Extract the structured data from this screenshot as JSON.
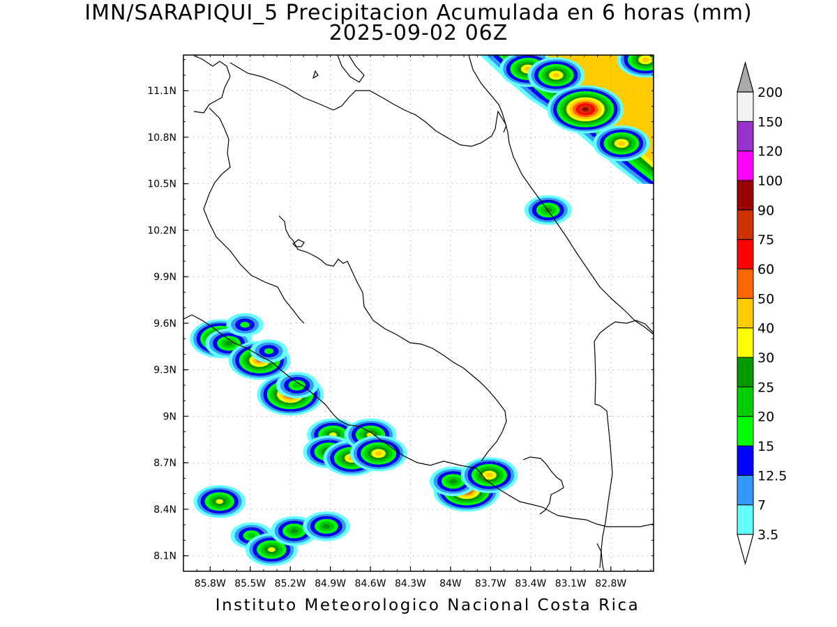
{
  "title": {
    "line1": "IMN/SARAPIQUI_5 Precipitacion Acumulada en 6 horas (mm)",
    "line2": "2025-09-02 06Z"
  },
  "footer": "Instituto Meteorologico Nacional Costa Rica",
  "axes": {
    "lon_range": [
      -86.0,
      -82.48
    ],
    "lat_range": [
      8.0,
      11.33
    ],
    "x_ticks": [
      {
        "value": -85.8,
        "label": "85.8W"
      },
      {
        "value": -85.5,
        "label": "85.5W"
      },
      {
        "value": -85.2,
        "label": "85.2W"
      },
      {
        "value": -84.9,
        "label": "84.9W"
      },
      {
        "value": -84.6,
        "label": "84.6W"
      },
      {
        "value": -84.3,
        "label": "84.3W"
      },
      {
        "value": -84.0,
        "label": "84W"
      },
      {
        "value": -83.7,
        "label": "83.7W"
      },
      {
        "value": -83.4,
        "label": "83.4W"
      },
      {
        "value": -83.1,
        "label": "83.1W"
      },
      {
        "value": -82.8,
        "label": "82.8W"
      }
    ],
    "y_ticks": [
      {
        "value": 8.1,
        "label": "8.1N"
      },
      {
        "value": 8.4,
        "label": "8.4N"
      },
      {
        "value": 8.7,
        "label": "8.7N"
      },
      {
        "value": 9.0,
        "label": "9N"
      },
      {
        "value": 9.3,
        "label": "9.3N"
      },
      {
        "value": 9.6,
        "label": "9.6N"
      },
      {
        "value": 9.9,
        "label": "9.9N"
      },
      {
        "value": 10.2,
        "label": "10.2N"
      },
      {
        "value": 10.5,
        "label": "10.5N"
      },
      {
        "value": 10.8,
        "label": "10.8N"
      },
      {
        "value": 11.1,
        "label": "11.1N"
      }
    ],
    "grid": true
  },
  "colorbar": {
    "units": "mm",
    "levels": [
      {
        "label": "3.5",
        "color": "#66ffff"
      },
      {
        "label": "7",
        "color": "#3399ff"
      },
      {
        "label": "12.5",
        "color": "#0000ff"
      },
      {
        "label": "15",
        "color": "#00ff00"
      },
      {
        "label": "20",
        "color": "#00cc00"
      },
      {
        "label": "25",
        "color": "#009900"
      },
      {
        "label": "30",
        "color": "#ffff00"
      },
      {
        "label": "40",
        "color": "#ffcc00"
      },
      {
        "label": "50",
        "color": "#ff6600"
      },
      {
        "label": "60",
        "color": "#ff0000"
      },
      {
        "label": "75",
        "color": "#cc3300"
      },
      {
        "label": "90",
        "color": "#990000"
      },
      {
        "label": "100",
        "color": "#ff00ff"
      },
      {
        "label": "120",
        "color": "#9933cc"
      },
      {
        "label": "150",
        "color": "#f2f2f2"
      },
      {
        "label": "200",
        "color": "#aaaaaa"
      }
    ]
  },
  "precip_cells": [
    {
      "lon": -85.72,
      "lat": 9.5,
      "max_mm": 50
    },
    {
      "lon": -85.66,
      "lat": 9.47,
      "max_mm": 25
    },
    {
      "lon": -85.43,
      "lat": 9.36,
      "max_mm": 50
    },
    {
      "lon": -85.54,
      "lat": 9.59,
      "max_mm": 15
    },
    {
      "lon": -85.36,
      "lat": 9.42,
      "max_mm": 15
    },
    {
      "lon": -85.2,
      "lat": 9.14,
      "max_mm": 60
    },
    {
      "lon": -85.15,
      "lat": 9.2,
      "max_mm": 20
    },
    {
      "lon": -84.88,
      "lat": 8.88,
      "max_mm": 30
    },
    {
      "lon": -84.91,
      "lat": 8.77,
      "max_mm": 30
    },
    {
      "lon": -84.74,
      "lat": 8.73,
      "max_mm": 40
    },
    {
      "lon": -84.6,
      "lat": 8.88,
      "max_mm": 30
    },
    {
      "lon": -84.54,
      "lat": 8.76,
      "max_mm": 40
    },
    {
      "lon": -83.88,
      "lat": 8.52,
      "max_mm": 60
    },
    {
      "lon": -83.98,
      "lat": 8.58,
      "max_mm": 25
    },
    {
      "lon": -83.71,
      "lat": 8.62,
      "max_mm": 40
    },
    {
      "lon": -85.73,
      "lat": 8.45,
      "max_mm": 30
    },
    {
      "lon": -85.49,
      "lat": 8.23,
      "max_mm": 20
    },
    {
      "lon": -85.34,
      "lat": 8.14,
      "max_mm": 30
    },
    {
      "lon": -85.17,
      "lat": 8.26,
      "max_mm": 25
    },
    {
      "lon": -84.93,
      "lat": 8.29,
      "max_mm": 25
    },
    {
      "lon": -83.27,
      "lat": 10.33,
      "max_mm": 25
    },
    {
      "lon": -83.42,
      "lat": 11.24,
      "max_mm": 40
    },
    {
      "lon": -83.21,
      "lat": 11.2,
      "max_mm": 40
    },
    {
      "lon": -82.99,
      "lat": 10.98,
      "max_mm": 90
    },
    {
      "lon": -82.72,
      "lat": 10.76,
      "max_mm": 40
    },
    {
      "lon": -82.54,
      "lat": 11.3,
      "max_mm": 40
    }
  ]
}
